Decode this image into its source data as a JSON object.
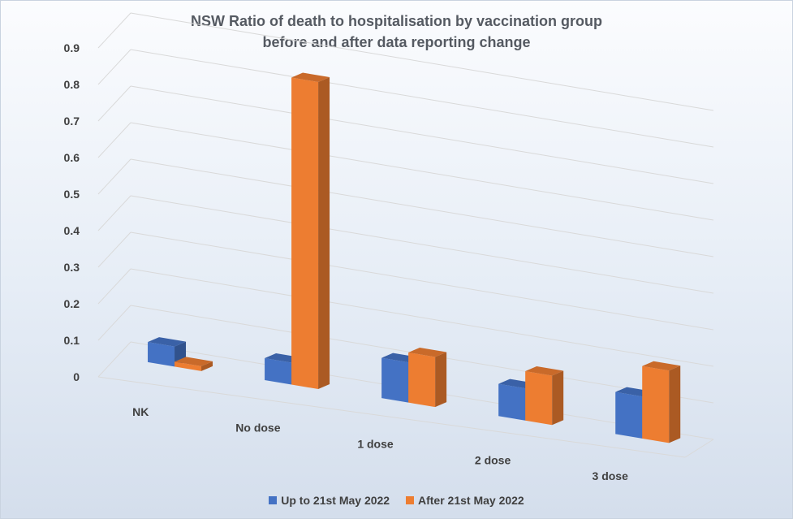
{
  "chart_data": {
    "type": "bar",
    "title": "NSW Ratio of death to hospitalisation  by vaccination group",
    "subtitle": "before and after data reporting change",
    "xlabel": "",
    "ylabel": "",
    "categories": [
      "NK",
      "No dose",
      "1 dose",
      "2 dose",
      "3 dose"
    ],
    "series": [
      {
        "name": "Up to 21st May 2022",
        "color": "#4472C4",
        "values": [
          0.055,
          0.06,
          0.11,
          0.088,
          0.115
        ]
      },
      {
        "name": "After 21st May 2022",
        "color": "#ED7D31",
        "values": [
          0.009,
          0.84,
          0.137,
          0.135,
          0.198
        ]
      }
    ],
    "ylim": [
      0,
      0.9
    ],
    "yticks": [
      "0",
      "0.1",
      "0.2",
      "0.3",
      "0.4",
      "0.5",
      "0.6",
      "0.7",
      "0.8",
      "0.9"
    ],
    "grid": true,
    "legend_position": "bottom",
    "style": "3d-clustered-column"
  }
}
